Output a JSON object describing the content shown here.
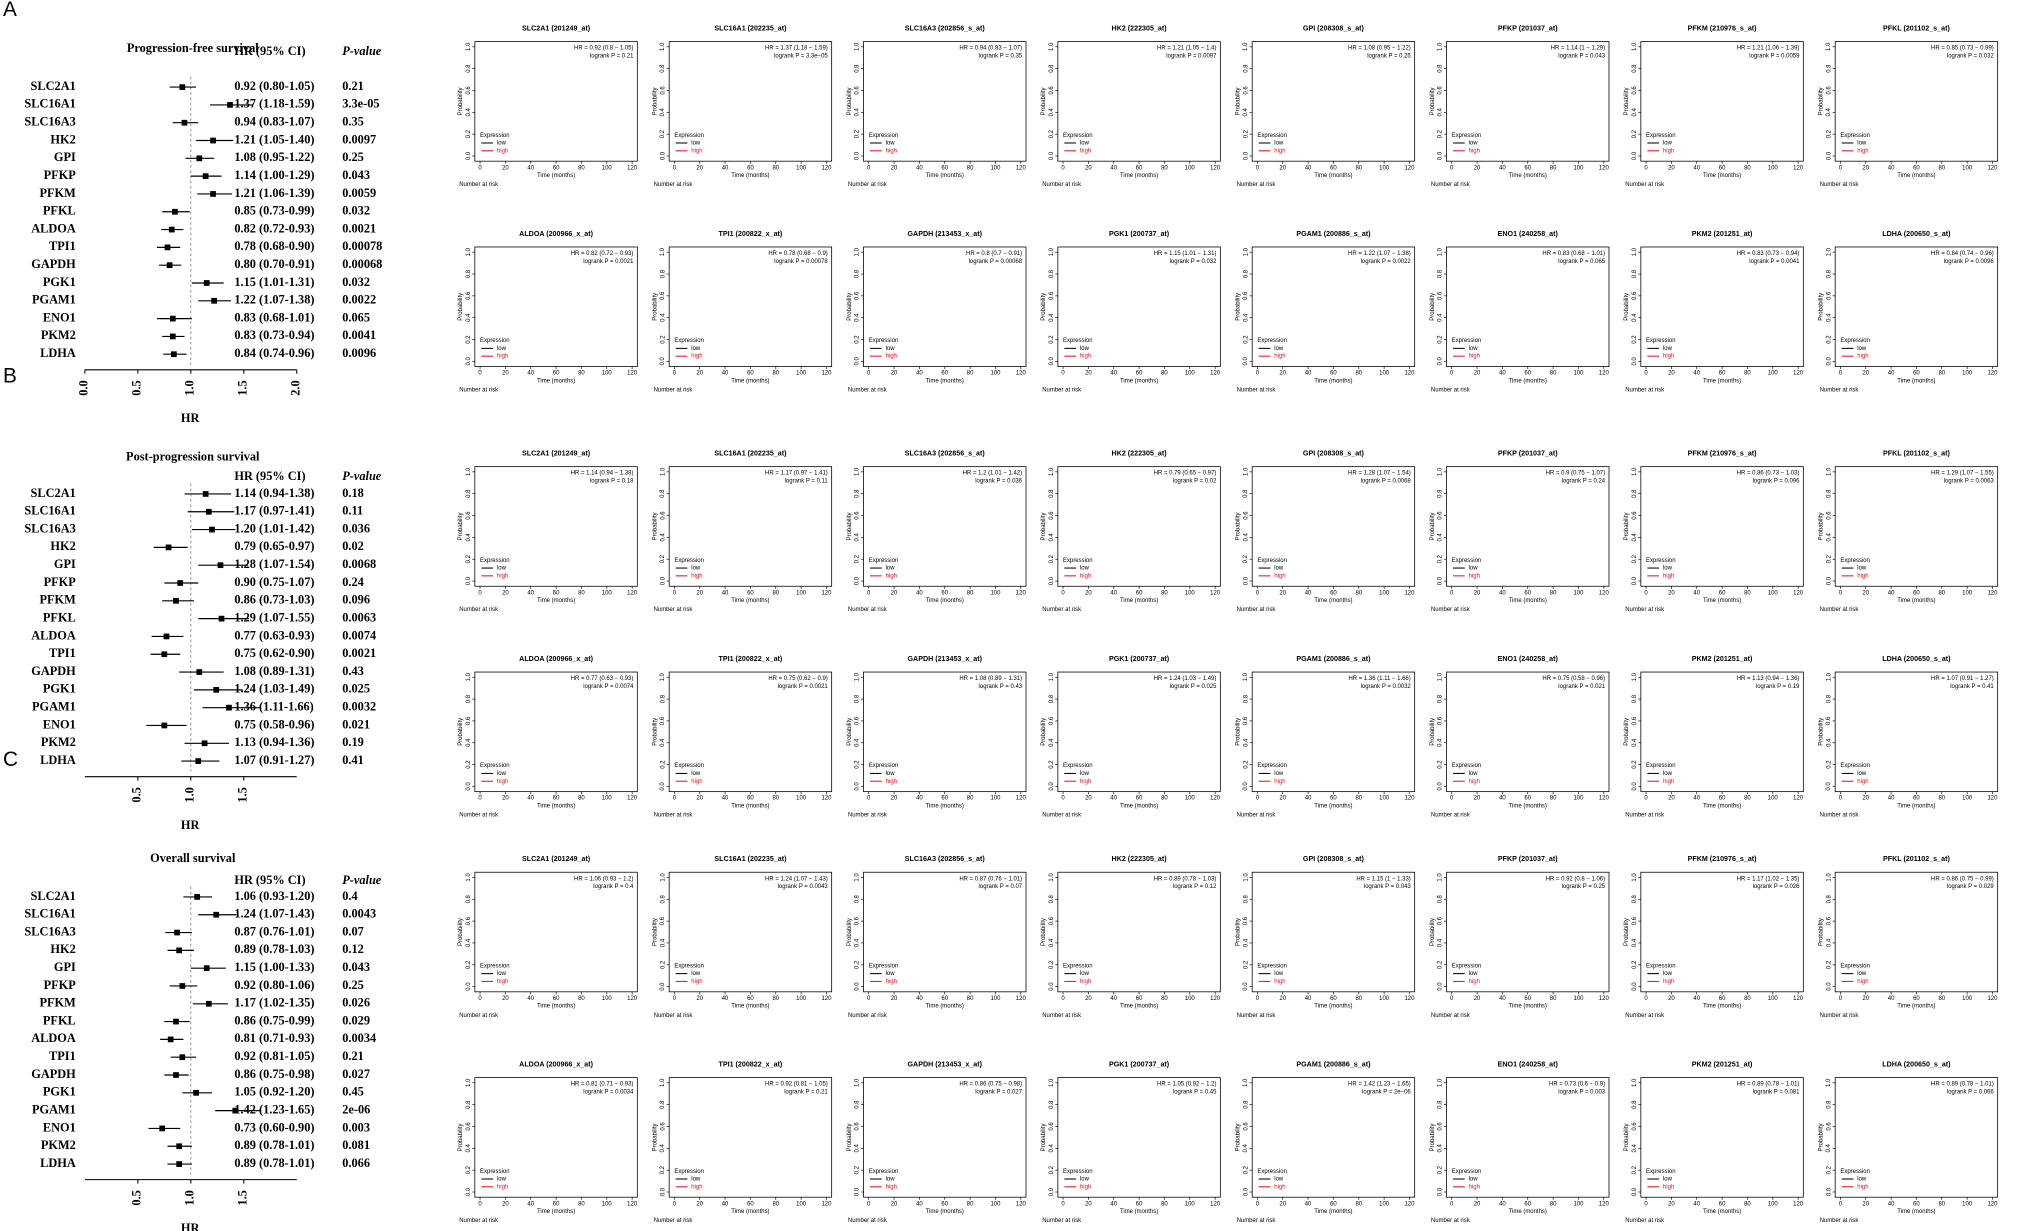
{
  "chart_data": {
    "type": "forest",
    "genes": [
      "SLC2A1",
      "SLC16A1",
      "SLC16A3",
      "HK2",
      "GPI",
      "PFKP",
      "PFKM",
      "PFKL",
      "ALDOA",
      "TPI1",
      "GAPDH",
      "PGK1",
      "PGAM1",
      "ENO1",
      "PKM2",
      "LDHA"
    ],
    "km_titles": [
      "SLC2A1 (201249_at)",
      "SLC16A1 (202235_at)",
      "SLC16A3 (202856_s_at)",
      "HK2 (222305_at)",
      "GPI (208308_s_at)",
      "PFKP (201037_at)",
      "PFKM (210976_s_at)",
      "PFKL (201102_s_at)",
      "ALDOA (200966_x_at)",
      "TPI1 (200822_x_at)",
      "GAPDH (213453_x_at)",
      "PGK1 (200737_at)",
      "PGAM1 (200886_s_at)",
      "ENO1 (240258_at)",
      "PKM2 (201251_at)",
      "LDHA (200650_s_at)"
    ],
    "hr_header": "HR (95% CI)",
    "p_header": "P-value",
    "xlabel": "HR",
    "xlim": [
      0,
      2
    ],
    "reference": 1,
    "km_axes": {
      "ylabel": "Probability",
      "xlabel": "Time (months)",
      "xlim": [
        0,
        120
      ],
      "xticks": [
        0,
        20,
        40,
        60,
        80,
        100,
        120
      ],
      "ylim": [
        0,
        1
      ],
      "yticks": [
        {
          "value": 0,
          "label": "0.0"
        },
        {
          "value": 0.2,
          "label": "0.2"
        },
        {
          "value": 0.4,
          "label": "0.4"
        },
        {
          "value": 0.6,
          "label": "0.6"
        },
        {
          "value": 0.8,
          "label": "0.8"
        },
        {
          "value": 1,
          "label": "1.0"
        }
      ],
      "legend_title": "Expression",
      "legend": [
        "low",
        "high"
      ],
      "colors": [
        "#000000",
        "#e8141b"
      ],
      "risk_label": "Number at risk"
    },
    "panels": [
      {
        "label": "A",
        "title": "Progression-free survival",
        "xticks": [
          {
            "value": 0,
            "label": "0.0"
          },
          {
            "value": 0.5,
            "label": "0.5"
          },
          {
            "value": 1,
            "label": "1.0"
          },
          {
            "value": 1.5,
            "label": "1.5"
          },
          {
            "value": 2,
            "label": "2.0"
          }
        ],
        "hr": [
          0.92,
          1.37,
          0.94,
          1.21,
          1.08,
          1.14,
          1.21,
          0.85,
          0.82,
          0.78,
          0.8,
          1.15,
          1.22,
          0.83,
          0.83,
          0.84
        ],
        "lo": [
          0.8,
          1.18,
          0.83,
          1.05,
          0.95,
          1.0,
          1.06,
          0.73,
          0.72,
          0.68,
          0.7,
          1.01,
          1.07,
          0.68,
          0.73,
          0.74
        ],
        "hi": [
          1.05,
          1.59,
          1.07,
          1.4,
          1.22,
          1.29,
          1.39,
          0.99,
          0.93,
          0.9,
          0.91,
          1.31,
          1.38,
          1.01,
          0.94,
          0.96
        ],
        "hr_labels": [
          "0.92 (0.80-1.05)",
          "1.37 (1.18-1.59)",
          "0.94 (0.83-1.07)",
          "1.21 (1.05-1.40)",
          "1.08 (0.95-1.22)",
          "1.14 (1.00-1.29)",
          "1.21 (1.06-1.39)",
          "0.85 (0.73-0.99)",
          "0.82 (0.72-0.93)",
          "0.78 (0.68-0.90)",
          "0.80 (0.70-0.91)",
          "1.15 (1.01-1.31)",
          "1.22 (1.07-1.38)",
          "0.83 (0.68-1.01)",
          "0.83 (0.73-0.94)",
          "0.84 (0.74-0.96)"
        ],
        "p_labels": [
          "0.21",
          "3.3e-05",
          "0.35",
          "0.0097",
          "0.25",
          "0.043",
          "0.0059",
          "0.032",
          "0.0021",
          "0.00078",
          "0.00068",
          "0.032",
          "0.0022",
          "0.065",
          "0.0041",
          "0.0096"
        ],
        "km_hr": [
          "HR = 0.92 (0.8 − 1.05)",
          "HR = 1.37 (1.18 − 1.59)",
          "HR = 0.94 (0.83 − 1.07)",
          "HR = 1.21 (1.05 − 1.4)",
          "HR = 1.08 (0.95 − 1.22)",
          "HR = 1.14 (1 − 1.29)",
          "HR = 1.21 (1.06 − 1.39)",
          "HR = 0.85 (0.73 − 0.99)",
          "HR = 0.82 (0.72 − 0.93)",
          "HR = 0.78 (0.68 − 0.9)",
          "HR = 0.8 (0.7 − 0.91)",
          "HR = 1.15 (1.01 − 1.31)",
          "HR = 1.22 (1.07 − 1.38)",
          "HR = 0.83 (0.68 − 1.01)",
          "HR = 0.83 (0.73 − 0.94)",
          "HR = 0.84 (0.74 − 0.96)"
        ],
        "km_p": [
          "logrank P = 0.21",
          "logrank P = 3.3e−05",
          "logrank P = 0.35",
          "logrank P = 0.0097",
          "logrank P = 0.25",
          "logrank P = 0.043",
          "logrank P = 0.0059",
          "logrank P = 0.032",
          "logrank P = 0.0021",
          "logrank P = 0.00078",
          "logrank P = 0.00068",
          "logrank P = 0.032",
          "logrank P = 0.0022",
          "logrank P = 0.065",
          "logrank P = 0.0041",
          "logrank P = 0.0096"
        ]
      },
      {
        "label": "B",
        "title": "Post-progression survival",
        "xticks": [
          {
            "value": 0.5,
            "label": "0.5"
          },
          {
            "value": 1,
            "label": "1.0"
          },
          {
            "value": 1.5,
            "label": "1.5"
          }
        ],
        "hr": [
          1.14,
          1.17,
          1.2,
          0.79,
          1.28,
          0.9,
          0.86,
          1.29,
          0.77,
          0.75,
          1.08,
          1.24,
          1.36,
          0.75,
          1.13,
          1.07
        ],
        "lo": [
          0.94,
          0.97,
          1.01,
          0.65,
          1.07,
          0.75,
          0.73,
          1.07,
          0.63,
          0.62,
          0.89,
          1.03,
          1.11,
          0.58,
          0.94,
          0.91
        ],
        "hi": [
          1.38,
          1.41,
          1.42,
          0.97,
          1.54,
          1.07,
          1.03,
          1.55,
          0.93,
          0.9,
          1.31,
          1.49,
          1.66,
          0.96,
          1.36,
          1.27
        ],
        "hr_labels": [
          "1.14 (0.94-1.38)",
          "1.17 (0.97-1.41)",
          "1.20 (1.01-1.42)",
          "0.79 (0.65-0.97)",
          "1.28 (1.07-1.54)",
          "0.90 (0.75-1.07)",
          "0.86 (0.73-1.03)",
          "1.29 (1.07-1.55)",
          "0.77 (0.63-0.93)",
          "0.75 (0.62-0.90)",
          "1.08 (0.89-1.31)",
          "1.24 (1.03-1.49)",
          "1.36 (1.11-1.66)",
          "0.75 (0.58-0.96)",
          "1.13 (0.94-1.36)",
          "1.07 (0.91-1.27)"
        ],
        "p_labels": [
          "0.18",
          "0.11",
          "0.036",
          "0.02",
          "0.0068",
          "0.24",
          "0.096",
          "0.0063",
          "0.0074",
          "0.0021",
          "0.43",
          "0.025",
          "0.0032",
          "0.021",
          "0.19",
          "0.41"
        ],
        "km_hr": [
          "HR = 1.14 (0.94 − 1.38)",
          "HR = 1.17 (0.97 − 1.41)",
          "HR = 1.2 (1.01 − 1.42)",
          "HR = 0.79 (0.65 − 0.97)",
          "HR = 1.28 (1.07 − 1.54)",
          "HR = 0.9 (0.75 − 1.07)",
          "HR = 0.86 (0.73 − 1.03)",
          "HR = 1.29 (1.07 − 1.55)",
          "HR = 0.77 (0.63 − 0.93)",
          "HR = 0.75 (0.62 − 0.9)",
          "HR = 1.08 (0.89 − 1.31)",
          "HR = 1.24 (1.03 − 1.49)",
          "HR = 1.36 (1.11 − 1.66)",
          "HR = 0.75 (0.58 − 0.96)",
          "HR = 1.13 (0.94 − 1.36)",
          "HR = 1.07 (0.91 − 1.27)"
        ],
        "km_p": [
          "logrank P = 0.18",
          "logrank P = 0.11",
          "logrank P = 0.036",
          "logrank P = 0.02",
          "logrank P = 0.0068",
          "logrank P = 0.24",
          "logrank P = 0.096",
          "logrank P = 0.0063",
          "logrank P = 0.0074",
          "logrank P = 0.0021",
          "logrank P = 0.43",
          "logrank P = 0.025",
          "logrank P = 0.0032",
          "logrank P = 0.021",
          "logrank P = 0.19",
          "logrank P = 0.41"
        ]
      },
      {
        "label": "C",
        "title": "Overall survival",
        "xticks": [
          {
            "value": 0.5,
            "label": "0.5"
          },
          {
            "value": 1,
            "label": "1.0"
          },
          {
            "value": 1.5,
            "label": "1.5"
          }
        ],
        "hr": [
          1.06,
          1.24,
          0.87,
          0.89,
          1.15,
          0.92,
          1.17,
          0.86,
          0.81,
          0.92,
          0.86,
          1.05,
          1.42,
          0.73,
          0.89,
          0.89
        ],
        "lo": [
          0.93,
          1.07,
          0.76,
          0.78,
          1.0,
          0.8,
          1.02,
          0.75,
          0.71,
          0.81,
          0.75,
          0.92,
          1.23,
          0.6,
          0.78,
          0.78
        ],
        "hi": [
          1.2,
          1.43,
          1.01,
          1.03,
          1.33,
          1.06,
          1.35,
          0.99,
          0.93,
          1.05,
          0.98,
          1.2,
          1.65,
          0.9,
          1.01,
          1.01
        ],
        "hr_labels": [
          "1.06 (0.93-1.20)",
          "1.24 (1.07-1.43)",
          "0.87 (0.76-1.01)",
          "0.89 (0.78-1.03)",
          "1.15 (1.00-1.33)",
          "0.92 (0.80-1.06)",
          "1.17 (1.02-1.35)",
          "0.86 (0.75-0.99)",
          "0.81 (0.71-0.93)",
          "0.92 (0.81-1.05)",
          "0.86 (0.75-0.98)",
          "1.05 (0.92-1.20)",
          "1.42 (1.23-1.65)",
          "0.73 (0.60-0.90)",
          "0.89 (0.78-1.01)",
          "0.89 (0.78-1.01)"
        ],
        "p_labels": [
          "0.4",
          "0.0043",
          "0.07",
          "0.12",
          "0.043",
          "0.25",
          "0.026",
          "0.029",
          "0.0034",
          "0.21",
          "0.027",
          "0.45",
          "2e-06",
          "0.003",
          "0.081",
          "0.066"
        ],
        "km_hr": [
          "HR = 1.06 (0.93 − 1.2)",
          "HR = 1.24 (1.07 − 1.43)",
          "HR = 0.87 (0.76 − 1.01)",
          "HR = 0.89 (0.78 − 1.03)",
          "HR = 1.15 (1 − 1.33)",
          "HR = 0.92 (0.8 − 1.06)",
          "HR = 1.17 (1.02 − 1.35)",
          "HR = 0.86 (0.75 − 0.99)",
          "HR = 0.81 (0.71 − 0.93)",
          "HR = 0.92 (0.81 − 1.05)",
          "HR = 0.86 (0.75 − 0.98)",
          "HR = 1.05 (0.92 − 1.2)",
          "HR = 1.42 (1.23 − 1.65)",
          "HR = 0.73 (0.6 − 0.9)",
          "HR = 0.89 (0.78 − 1.01)",
          "HR = 0.89 (0.78 − 1.01)"
        ],
        "km_p": [
          "logrank P = 0.4",
          "logrank P = 0.0043",
          "logrank P = 0.07",
          "logrank P = 0.12",
          "logrank P = 0.043",
          "logrank P = 0.25",
          "logrank P = 0.026",
          "logrank P = 0.029",
          "logrank P = 0.0034",
          "logrank P = 0.21",
          "logrank P = 0.027",
          "logrank P = 0.45",
          "logrank P = 2e−06",
          "logrank P = 0.003",
          "logrank P = 0.081",
          "logrank P = 0.066"
        ]
      }
    ]
  }
}
